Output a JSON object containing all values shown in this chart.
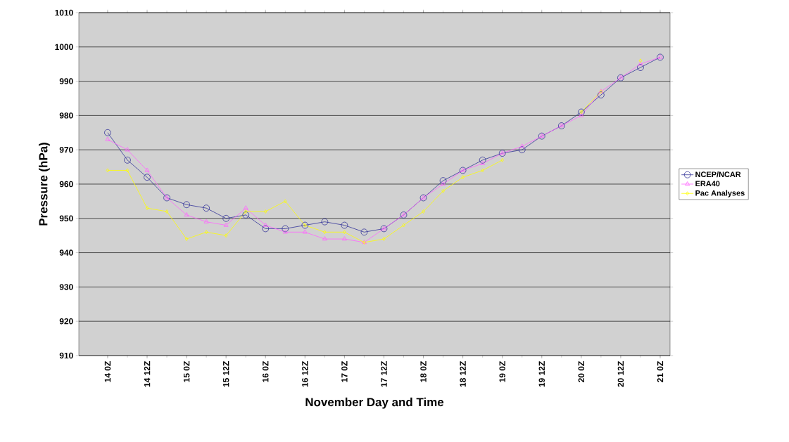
{
  "chart_data": {
    "type": "line",
    "xlabel": "November Day and Time",
    "ylabel": "Pressure (hPa)",
    "categories": [
      "14 0Z",
      null,
      "14 12Z",
      null,
      "15 0Z",
      null,
      "15 12Z",
      null,
      "16 0Z",
      null,
      "16 12Z",
      null,
      "17 0Z",
      null,
      "17 12Z",
      null,
      "18 0Z",
      null,
      "18 12Z",
      null,
      "19 0Z",
      null,
      "19 12Z",
      null,
      "20 0Z",
      null,
      "20 12Z",
      null,
      "21 0Z"
    ],
    "series": [
      {
        "name": "NCEP/NCAR",
        "color": "#333399",
        "marker": "circle",
        "values": [
          975,
          967,
          962,
          956,
          954,
          953,
          950,
          951,
          947,
          947,
          948,
          949,
          948,
          946,
          947,
          951,
          956,
          961,
          964,
          967,
          969,
          970,
          974,
          977,
          981,
          986,
          991,
          994,
          997
        ]
      },
      {
        "name": "ERA40",
        "color": "#ff66ff",
        "marker": "triangle",
        "values": [
          973,
          970,
          964,
          956,
          951,
          949,
          948,
          953,
          948,
          946,
          946,
          944,
          944,
          943,
          947,
          951,
          956,
          960,
          964,
          966,
          969,
          971,
          974,
          977,
          980,
          987,
          991,
          995,
          997
        ]
      },
      {
        "name": "Pac Analyses",
        "color": "#ffff00",
        "marker": "diamond",
        "values": [
          964,
          964,
          953,
          952,
          944,
          946,
          945,
          952,
          952,
          955,
          948,
          946,
          946,
          943,
          944,
          948,
          952,
          958,
          962,
          964,
          967,
          null,
          null,
          null,
          981,
          987,
          null,
          996,
          null
        ]
      }
    ],
    "ylim": [
      910,
      1010
    ],
    "yticks": [
      910,
      920,
      930,
      940,
      950,
      960,
      970,
      980,
      990,
      1000,
      1010
    ],
    "grid": "y",
    "legend": "right",
    "line_style": "solid"
  }
}
